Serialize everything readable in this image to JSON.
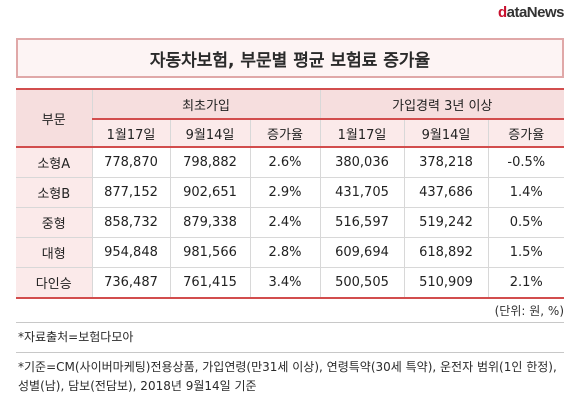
{
  "logo": {
    "first": "d",
    "rest": "ataNews"
  },
  "title": "자동차보험, 부문별 평균 보험료 증가율",
  "table": {
    "row_header": "부문",
    "groups": [
      "최초가입",
      "가입경력 3년 이상"
    ],
    "subheaders": [
      "1월17일",
      "9월14일",
      "증가율",
      "1월17일",
      "9월14일",
      "증가율"
    ],
    "rows": [
      {
        "category": "소형A",
        "cells": [
          "778,870",
          "798,882",
          "2.6%",
          "380,036",
          "378,218",
          "-0.5%"
        ]
      },
      {
        "category": "소형B",
        "cells": [
          "877,152",
          "902,651",
          "2.9%",
          "431,705",
          "437,686",
          "1.4%"
        ]
      },
      {
        "category": "중형",
        "cells": [
          "858,732",
          "879,338",
          "2.4%",
          "516,597",
          "519,242",
          "0.5%"
        ]
      },
      {
        "category": "대형",
        "cells": [
          "954,848",
          "981,566",
          "2.8%",
          "609,694",
          "618,892",
          "1.5%"
        ]
      },
      {
        "category": "다인승",
        "cells": [
          "736,487",
          "761,415",
          "3.4%",
          "500,505",
          "510,909",
          "2.1%"
        ]
      }
    ]
  },
  "unit_note": "(단위: 원, %)",
  "source_note": "*자료출처=보험다모아",
  "criteria_note": "*기준=CM(사이버마케팅)전용상품, 가입연령(만31세 이상), 연령특약(30세 특약), 운전자 범위(1인 한정), 성별(남), 담보(전담보), 2018년 9월14일 기준"
}
